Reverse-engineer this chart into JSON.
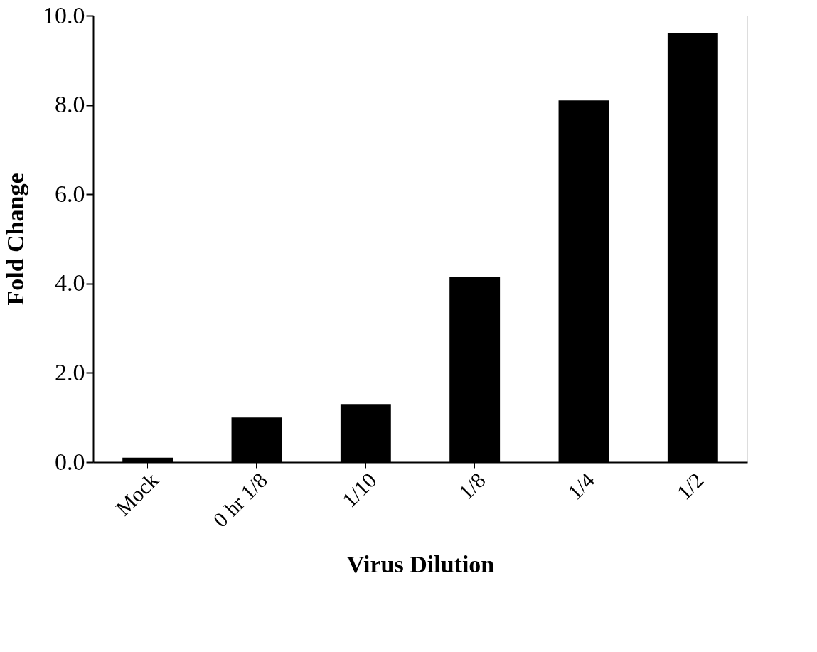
{
  "chart_data": {
    "type": "bar",
    "xlabel": "Virus Dilution",
    "ylabel": "Fold Change",
    "categories": [
      "Mock",
      "0 hr 1/8",
      "1/10",
      "1/8",
      "1/4",
      "1/2"
    ],
    "values": [
      0.1,
      1.0,
      1.3,
      4.15,
      8.1,
      9.6
    ],
    "color": "#000000",
    "ylim": [
      0,
      10
    ],
    "yticks": [
      {
        "value": 0,
        "label": "0.0"
      },
      {
        "value": 2,
        "label": "2.0"
      },
      {
        "value": 4,
        "label": "4.0"
      },
      {
        "value": 6,
        "label": "6.0"
      },
      {
        "value": 8,
        "label": "8.0"
      },
      {
        "value": 10,
        "label": "10.0"
      }
    ],
    "grid": false
  }
}
